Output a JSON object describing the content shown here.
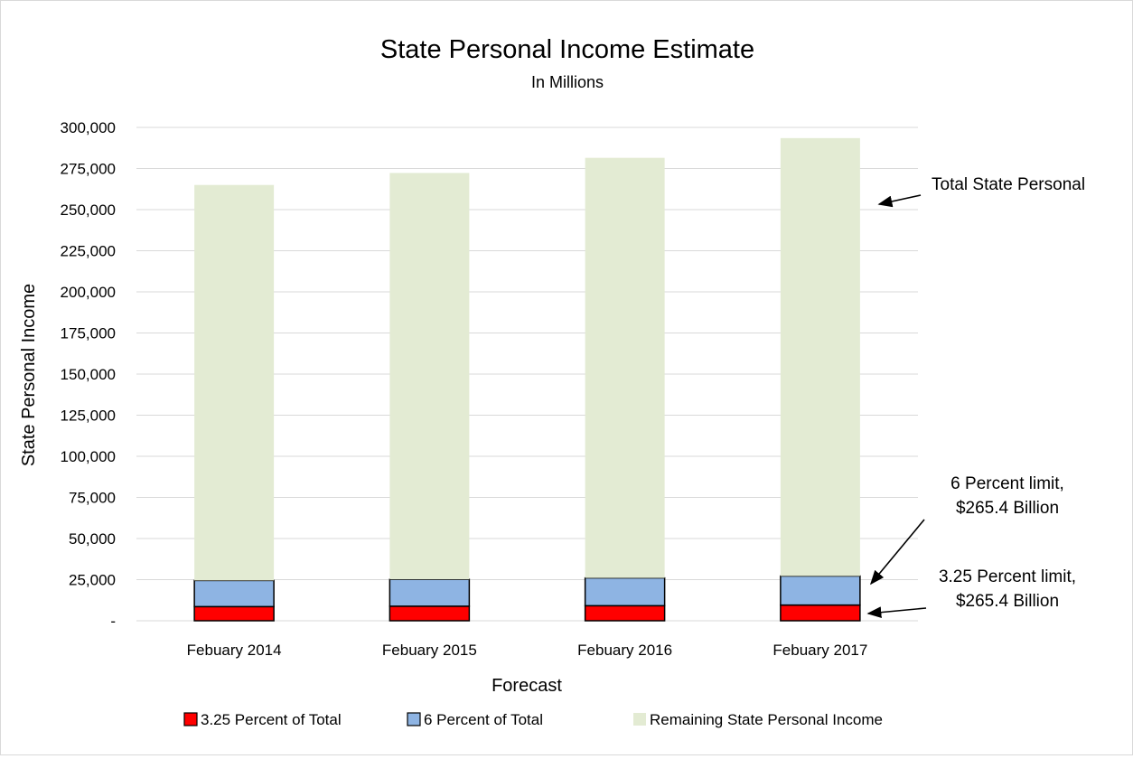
{
  "chart_data": {
    "type": "bar",
    "stacked": true,
    "title": "State Personal Income Estimate",
    "subtitle": "In Millions",
    "xlabel": "Forecast",
    "ylabel": "State Personal Income",
    "ylim": [
      0,
      300000
    ],
    "y_ticks": [
      "-",
      "25,000",
      "50,000",
      "75,000",
      "100,000",
      "125,000",
      "150,000",
      "175,000",
      "200,000",
      "225,000",
      "250,000",
      "275,000",
      "300,000"
    ],
    "y_tick_values": [
      0,
      25000,
      50000,
      75000,
      100000,
      125000,
      150000,
      175000,
      200000,
      225000,
      250000,
      275000,
      300000
    ],
    "grid": true,
    "legend_position": "bottom",
    "categories": [
      "Febuary 2014",
      "Febuary 2015",
      "Febuary 2016",
      "Febuary 2017"
    ],
    "series": [
      {
        "name": "3.25 Percent of Total",
        "color": "#ff0000",
        "values": [
          8600,
          8850,
          9150,
          9550
        ]
      },
      {
        "name": "6 Percent of Total",
        "color": "#8eb4e3",
        "values": [
          15900,
          16350,
          16900,
          17650
        ]
      },
      {
        "name": "Remaining State Personal Income",
        "color": "#e3ebd3",
        "values": [
          240500,
          247100,
          255450,
          266300
        ]
      }
    ],
    "annotations": [
      {
        "id": "total",
        "lines": [
          "Total State Personal"
        ]
      },
      {
        "id": "six",
        "lines": [
          "6 Percent limit,",
          "$265.4 Billion"
        ]
      },
      {
        "id": "three",
        "lines": [
          "3.25 Percent limit,",
          "$265.4 Billion"
        ]
      }
    ]
  }
}
